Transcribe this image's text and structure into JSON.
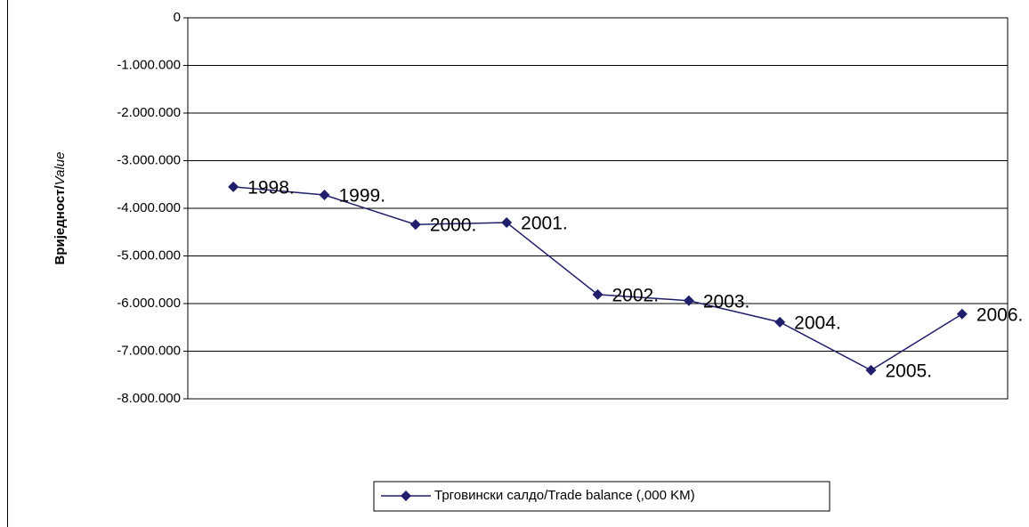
{
  "chart_data": {
    "type": "line",
    "ylabel": [
      "Вриједност/",
      "Value"
    ],
    "categories": [
      "1998.",
      "1999.",
      "2000.",
      "2001.",
      "2002.",
      "2003.",
      "2004.",
      "2005.",
      "2006."
    ],
    "series": [
      {
        "name": "Трговински салдо/Trade balance (,000 KM)",
        "color": "#1f1f6b",
        "values": [
          -3550000,
          -3720000,
          -4340000,
          -4300000,
          -5810000,
          -5940000,
          -6390000,
          -7400000,
          -6220000
        ]
      }
    ],
    "ylim": [
      -8000000,
      0
    ],
    "yticks": [
      0,
      {
        "value": -1000000,
        "label": "-1.000.000"
      },
      {
        "value": -2000000,
        "label": "-2.000.000"
      },
      {
        "value": -3000000,
        "label": "-3.000.000"
      },
      {
        "value": -4000000,
        "label": "-4.000.000"
      },
      {
        "value": -5000000,
        "label": "-5.000.000"
      },
      {
        "value": -6000000,
        "label": "-6.000.000"
      },
      {
        "value": -7000000,
        "label": "-7.000.000"
      },
      {
        "value": -8000000,
        "label": "-8.000.000"
      }
    ],
    "grid": true,
    "legend": "bottom"
  }
}
